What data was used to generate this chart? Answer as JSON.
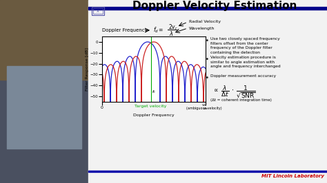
{
  "title": "Doppler Velocity Estimation",
  "title_fontsize": 11,
  "title_color": "#000000",
  "slide_bg": "#e8e8e8",
  "plot_bg": "#ffffff",
  "bullet_points": [
    "Use two closely spaced frequency\nfilters offset from the center\nfrequency of the Doppler filter\ncontaining the detection",
    "Velocity estimation procedure is\nsimilar to angle estimation with\nangle and frequency interchanged",
    "Doppler measurement accuracy"
  ],
  "xlabel": "Doppler Frequency",
  "ylabel": "Filter Response [dB]",
  "ylim": [
    -55,
    5
  ],
  "yticks": [
    0,
    -10,
    -20,
    -30,
    -40,
    -50
  ],
  "target_vel_label": "Target velocity",
  "amb_vel_label": "(ambiguous velocity)",
  "coherent_line": "(Δt = coherent integration time)",
  "blue_line_color": "#2222cc",
  "red_line_color": "#cc2222",
  "green_line_color": "#00aa00",
  "header_bar_color": "#00008b",
  "footer_bar_color": "#0000aa",
  "mit_color": "#cc0000",
  "logo_edge_color": "#5555aa",
  "vid_bg": "#5a6070",
  "c_blue": 0.44,
  "c_red": 0.5,
  "bw": 0.24,
  "label_radial": "Radial Velocity",
  "label_wavelength": "Wavelength"
}
